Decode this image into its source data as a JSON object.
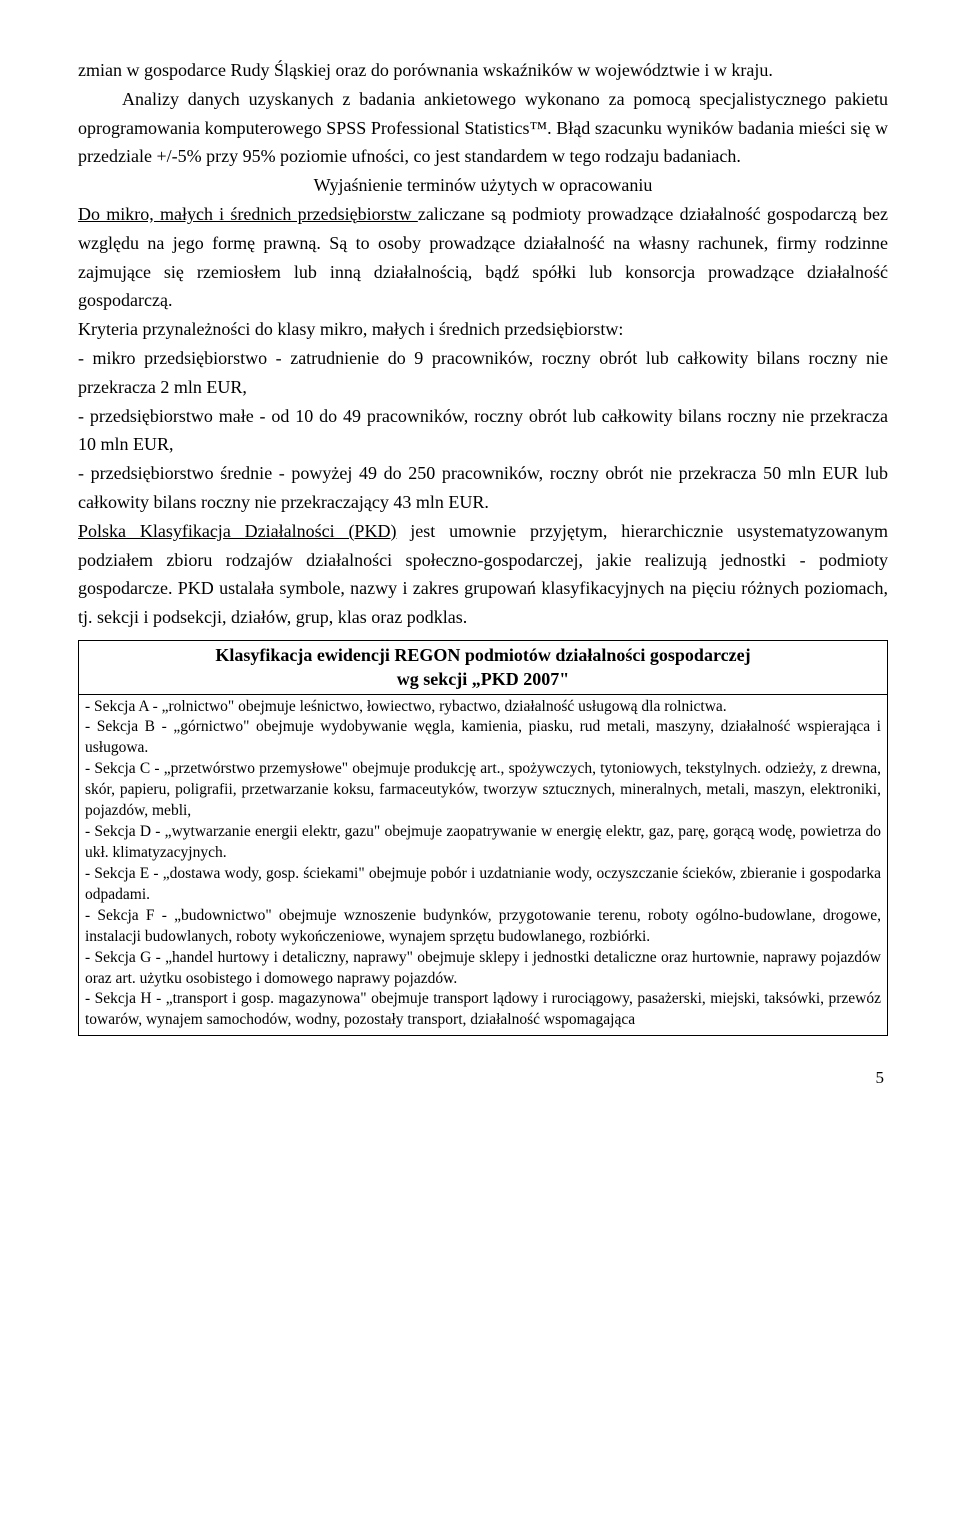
{
  "body": {
    "p1a": "zmian w gospodarce Rudy Śląskiej oraz do porównania wskaźników w województwie i w kraju.",
    "p1b": "Analizy danych uzyskanych z badania ankietowego wykonano za pomocą specjalistycznego pakietu oprogramowania komputerowego SPSS Professional Statistics™. Błąd szacunku wyników badania mieści się w przedziale +/-5% przy 95% poziomie ufności, co jest standardem w tego rodzaju badaniach.",
    "p1c_center": "Wyjaśnienie terminów użytych w opracowaniu",
    "p2_u": "Do mikro, małych i średnich przedsiębiorstw ",
    "p2_rest": "zaliczane są podmioty prowadzące działalność gospodarczą bez względu na jego formę prawną. Są to osoby prowadzące działalność na własny rachunek, firmy rodzinne zajmujące się rzemiosłem lub inną działalnością, bądź spółki lub konsorcja prowadzące działalność gospodarczą.",
    "p3": "Kryteria przynależności do klasy mikro, małych i średnich przedsiębiorstw:",
    "p4": "- mikro przedsiębiorstwo - zatrudnienie do 9 pracowników, roczny obrót lub całkowity bilans roczny nie przekracza 2 mln EUR,",
    "p5": "- przedsiębiorstwo małe - od 10 do 49 pracowników, roczny obrót lub całkowity bilans roczny nie przekracza 10 mln EUR,",
    "p6": "- przedsiębiorstwo średnie - powyżej 49 do 250 pracowników, roczny obrót nie przekracza 50 mln EUR lub całkowity bilans roczny nie przekraczający 43 mln EUR.",
    "p7_u": "Polska Klasyfikacja Działalności (PKD)",
    "p7_rest": " jest umownie przyjętym, hierarchicznie usystematyzowanym podziałem zbioru rodzajów działalności społeczno-gospodarczej, jakie realizują jednostki - podmioty gospodarcze. PKD ustalała symbole, nazwy i zakres grupowań klasyfikacyjnych na pięciu różnych poziomach, tj. sekcji i podsekcji, działów, grup, klas oraz podklas."
  },
  "table": {
    "title_line1": "Klasyfikacja ewidencji REGON podmiotów działalności gospodarczej",
    "title_line2": "wg sekcji „PKD 2007\"",
    "rows": [
      "- Sekcja A - „rolnictwo\" obejmuje leśnictwo, łowiectwo, rybactwo, działalność usługową dla rolnictwa.",
      "- Sekcja B - „górnictwo\" obejmuje wydobywanie węgla, kamienia, piasku, rud metali, maszyny, działalność wspierająca i usługowa.",
      "- Sekcja C - „przetwórstwo przemysłowe\" obejmuje produkcję art., spożywczych, tytoniowych, tekstylnych. odzieży, z drewna, skór, papieru, poligrafii, przetwarzanie koksu, farmaceutyków, tworzyw sztucznych, mineralnych, metali, maszyn, elektroniki, pojazdów, mebli,",
      "- Sekcja D - „wytwarzanie energii elektr, gazu\" obejmuje zaopatrywanie w energię elektr, gaz, parę, gorącą wodę, powietrza do ukł. klimatyzacyjnych.",
      "- Sekcja E - „dostawa wody, gosp. ściekami\" obejmuje pobór i uzdatnianie wody, oczyszczanie ścieków, zbieranie i gospodarka odpadami.",
      "- Sekcja F - „budownictwo\" obejmuje wznoszenie budynków, przygotowanie terenu, roboty ogólno-budowlane, drogowe, instalacji budowlanych, roboty wykończeniowe, wynajem sprzętu budowlanego, rozbiórki.",
      "- Sekcja G - „handel hurtowy i detaliczny, naprawy\" obejmuje sklepy i jednostki detaliczne oraz hurtownie, naprawy pojazdów oraz art. użytku osobistego i domowego naprawy pojazdów.",
      "- Sekcja H - „transport i gosp. magazynowa\" obejmuje transport lądowy i rurociągowy, pasażerski, miejski, taksówki, przewóz towarów, wynajem samochodów, wodny, pozostały transport, działalność wspomagająca"
    ]
  },
  "page_number": "5"
}
